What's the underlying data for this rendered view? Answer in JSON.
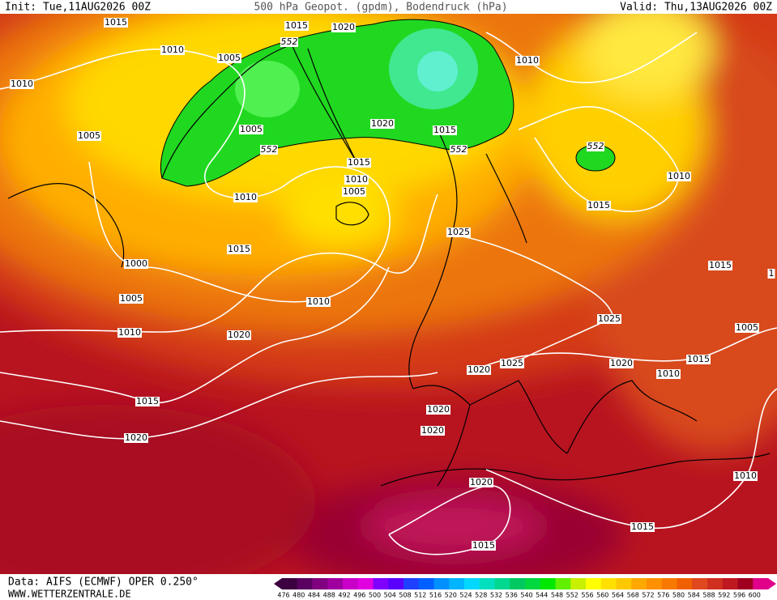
{
  "header": {
    "init": "Init: Tue,11AUG2026 00Z",
    "title": "500 hPa Geopot. (gpdm), Bodendruck (hPa)",
    "valid": "Valid: Thu,13AUG2026 00Z"
  },
  "isobar_labels": [
    "1015",
    "1010",
    "1005",
    "1015",
    "1020",
    "1010",
    "1005",
    "1005",
    "1020",
    "1015",
    "1010",
    "1015",
    "1010",
    "1005",
    "1010",
    "1010",
    "1015",
    "1025",
    "1015",
    "1000",
    "1005",
    "1010",
    "1015",
    "1",
    "1010",
    "1020",
    "1025",
    "1005",
    "1025",
    "1020",
    "1015",
    "1020",
    "1010",
    "1015",
    "1020",
    "1020",
    "1020",
    "1020",
    "1010",
    "1015",
    "1015"
  ],
  "contour_labels": [
    "552",
    "552",
    "552",
    "552"
  ],
  "footer": {
    "data": "Data: AIFS (ECMWF) OPER 0.250°",
    "site": "WWW.WETTERZENTRALE.DE"
  },
  "colorbar": {
    "levels": [
      476,
      480,
      484,
      488,
      492,
      496,
      500,
      504,
      508,
      512,
      516,
      520,
      524,
      528,
      532,
      536,
      540,
      544,
      548,
      552,
      556,
      560,
      564,
      568,
      572,
      576,
      580,
      584,
      588,
      592,
      596,
      600
    ],
    "colors": [
      "#3c0040",
      "#5a0060",
      "#800080",
      "#a000a0",
      "#c800c8",
      "#e000e0",
      "#8000ff",
      "#5a00ff",
      "#2040ff",
      "#0060ff",
      "#0090ff",
      "#00b4ff",
      "#00d8ff",
      "#00e0c0",
      "#00d890",
      "#00c860",
      "#00d840",
      "#00e800",
      "#60f000",
      "#c8f000",
      "#ffff00",
      "#ffe000",
      "#ffc800",
      "#ffa800",
      "#ff9000",
      "#f87800",
      "#f06000",
      "#e04820",
      "#d03020",
      "#c01820",
      "#a00020",
      "#e0008a"
    ]
  }
}
